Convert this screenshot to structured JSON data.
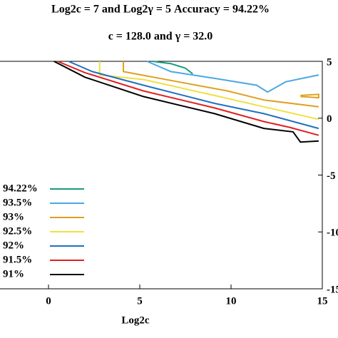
{
  "chart_data": {
    "type": "contour",
    "title": "Log2c = 7 and Log2γ = 5 Accuracy = 94.22%",
    "subtitle": "c = 128.0 and γ = 32.0",
    "x_label": "Log2c",
    "xlim": [
      -5,
      15
    ],
    "ylim": [
      -15,
      5
    ],
    "xticks": [
      0,
      5,
      10,
      15
    ],
    "yticks": [
      -15,
      -10,
      -5,
      0,
      5
    ],
    "legend": "lower left",
    "series": [
      {
        "name": "94.22%",
        "color": "#1a9a7a",
        "x": [
          5.7,
          6.7,
          7.5,
          7.9
        ],
        "values": [
          5,
          4.8,
          4.4,
          3.9
        ]
      },
      {
        "name": "93.5%",
        "color": "#4aa8e0",
        "x": [
          5.4,
          6.7,
          9.1,
          11.4,
          12.0,
          13.0,
          14.8
        ],
        "values": [
          5,
          4.1,
          3.5,
          2.9,
          2.3,
          3.2,
          3.8
        ]
      },
      {
        "name": "93%",
        "color": "#e0a020",
        "x": [
          4.1,
          4.1,
          7.1,
          9.8,
          11.8,
          14.8,
          null,
          13.8,
          14.8,
          14.8,
          13.8
        ],
        "values": [
          5,
          4.1,
          3.2,
          2.4,
          1.6,
          1.0,
          null,
          2.0,
          2.1,
          1.8,
          1.9
        ]
      },
      {
        "name": "92.5%",
        "color": "#f0e040",
        "x": [
          2.8,
          2.8,
          5.2,
          9.1,
          11.8,
          14.8
        ],
        "values": [
          5,
          3.8,
          3.4,
          2.0,
          1.0,
          -0.1
        ]
      },
      {
        "name": "92%",
        "color": "#2070c0",
        "x": [
          1.1,
          2.4,
          5.2,
          9.1,
          11.8,
          14.8
        ],
        "values": [
          5,
          4.1,
          2.9,
          1.3,
          0.4,
          -0.9
        ]
      },
      {
        "name": "91.5%",
        "color": "#e02020",
        "x": [
          0.5,
          2.0,
          5.2,
          9.1,
          11.8,
          13.2,
          14.8
        ],
        "values": [
          5,
          4.0,
          2.4,
          0.9,
          -0.3,
          -0.8,
          -1.5
        ]
      },
      {
        "name": "91%",
        "color": "#000000",
        "x": [
          0.3,
          2.0,
          5.2,
          9.1,
          11.8,
          13.4,
          13.8,
          14.8
        ],
        "values": [
          5,
          3.6,
          1.9,
          0.4,
          -0.9,
          -1.2,
          -2.1,
          -2.0
        ]
      }
    ]
  }
}
